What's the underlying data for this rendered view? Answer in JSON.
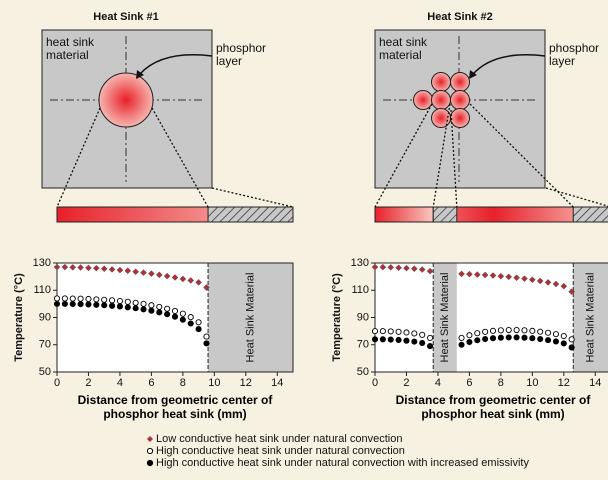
{
  "chart_data": [
    {
      "type": "scatter",
      "title": "Heat Sink #1",
      "annotations": {
        "material": "heat sink material",
        "phosphor": "phosphor layer",
        "shaded_label": "Heat Sink Material"
      },
      "xlabel": "Distance from geometric center of phosphor heat sink (mm)",
      "ylabel": "Temperature (°C)",
      "xlim": [
        0,
        15
      ],
      "xticks": [
        0,
        2,
        4,
        6,
        8,
        10,
        12,
        14
      ],
      "ylim": [
        50,
        130
      ],
      "yticks": [
        50,
        70,
        90,
        110,
        130
      ],
      "shaded_regions": [
        [
          9.6,
          15
        ]
      ],
      "x": [
        0,
        0.5,
        1,
        1.5,
        2,
        2.5,
        3,
        3.5,
        4,
        4.5,
        5,
        5.5,
        6,
        6.5,
        7,
        7.5,
        8,
        8.5,
        9,
        9.5
      ],
      "series": [
        {
          "name": "Low conductive heat sink under natural convection",
          "color": "#b0303a",
          "marker": "diamond",
          "values": [
            127,
            127,
            126.8,
            126.7,
            126.4,
            126.2,
            125.8,
            125.3,
            124.8,
            124.3,
            123.6,
            122.9,
            122.2,
            121.3,
            120.4,
            119.4,
            118.3,
            117.2,
            115.8,
            112
          ]
        },
        {
          "name": "High conductive heat sink under natural convection",
          "color": "#000000",
          "marker": "circle-open",
          "values": [
            104,
            104,
            103.9,
            103.8,
            103.6,
            103.3,
            103,
            102.6,
            102.1,
            101.5,
            100.8,
            100,
            99,
            97.8,
            96.4,
            94.8,
            92.8,
            90.3,
            86.5,
            76
          ]
        },
        {
          "name": "High conductive heat sink under natural convection with increased emissivity",
          "color": "#000000",
          "marker": "circle",
          "values": [
            100,
            100,
            99.9,
            99.8,
            99.6,
            99.3,
            99,
            98.6,
            98.1,
            97.5,
            96.8,
            96,
            95,
            93.8,
            92.4,
            90.6,
            88.4,
            85.6,
            81.5,
            71
          ]
        }
      ]
    },
    {
      "type": "scatter",
      "title": "Heat Sink #2",
      "annotations": {
        "material": "heat sink material",
        "phosphor": "phosphor layer",
        "shaded_label": "Heat Sink Material"
      },
      "xlabel": "Distance from geometric center of phosphor heat sink (mm)",
      "ylabel": "Temperature (°C)",
      "xlim": [
        0,
        15
      ],
      "xticks": [
        0,
        2,
        4,
        6,
        8,
        10,
        12,
        14
      ],
      "ylim": [
        50,
        130
      ],
      "yticks": [
        50,
        70,
        90,
        110,
        130
      ],
      "shaded_regions": [
        [
          3.7,
          5.2
        ],
        [
          12.6,
          15
        ]
      ],
      "x": [
        0,
        0.5,
        1,
        1.5,
        2,
        2.5,
        3,
        3.5,
        4.5,
        5.5,
        6,
        6.5,
        7,
        7.5,
        8,
        8.5,
        9,
        9.5,
        10,
        10.5,
        11,
        11.5,
        12,
        12.5
      ],
      "series": [
        {
          "color": "#b0303a",
          "marker": "diamond",
          "values": [
            127,
            127,
            126.8,
            126.5,
            126.2,
            125.8,
            125.2,
            124,
            null,
            122,
            121.8,
            121.5,
            121.2,
            120.8,
            120.3,
            119.8,
            119.2,
            118.5,
            117.7,
            116.8,
            115.8,
            114.6,
            113,
            109
          ]
        },
        {
          "color": "#000000",
          "marker": "circle-open",
          "values": [
            80,
            80,
            79.8,
            79.5,
            79,
            78.3,
            77.3,
            75,
            null,
            75,
            77,
            78.5,
            79.5,
            80.2,
            80.6,
            80.8,
            80.8,
            80.6,
            80.2,
            79.6,
            78.8,
            77.8,
            76.4,
            74
          ]
        },
        {
          "color": "#000000",
          "marker": "circle",
          "values": [
            74,
            74,
            73.8,
            73.5,
            73,
            72.3,
            71.3,
            69,
            null,
            70,
            72,
            73.3,
            74.2,
            74.8,
            75.2,
            75.4,
            75.4,
            75.2,
            74.8,
            74.2,
            73.4,
            72.4,
            71,
            68
          ]
        }
      ]
    }
  ]
}
